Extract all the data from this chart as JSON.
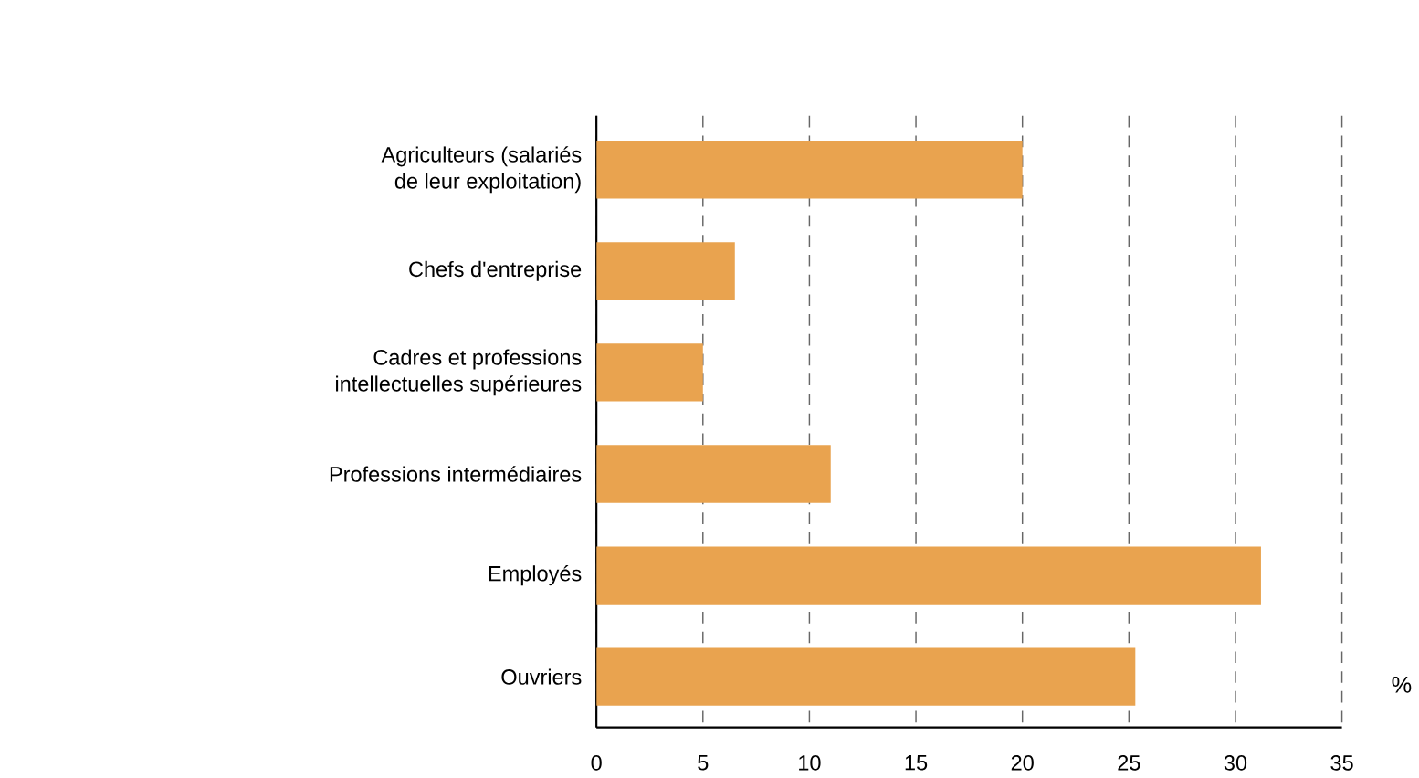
{
  "chart_data": {
    "type": "bar",
    "orientation": "horizontal",
    "xlabel": "%",
    "categories": [
      "Agriculteurs (salariés\nde leur exploitation)",
      "Chefs d'entreprise",
      "Cadres et professions\nintellectuelles supérieures",
      "Professions intermédiaires",
      "Employés",
      "Ouvriers"
    ],
    "values": [
      20,
      6.5,
      5,
      11,
      31.2,
      25.3
    ],
    "color": "#e9a34f",
    "xlim": [
      0,
      35
    ],
    "xticks": [
      0,
      5,
      10,
      15,
      20,
      25,
      30,
      35
    ],
    "grid": "x"
  }
}
